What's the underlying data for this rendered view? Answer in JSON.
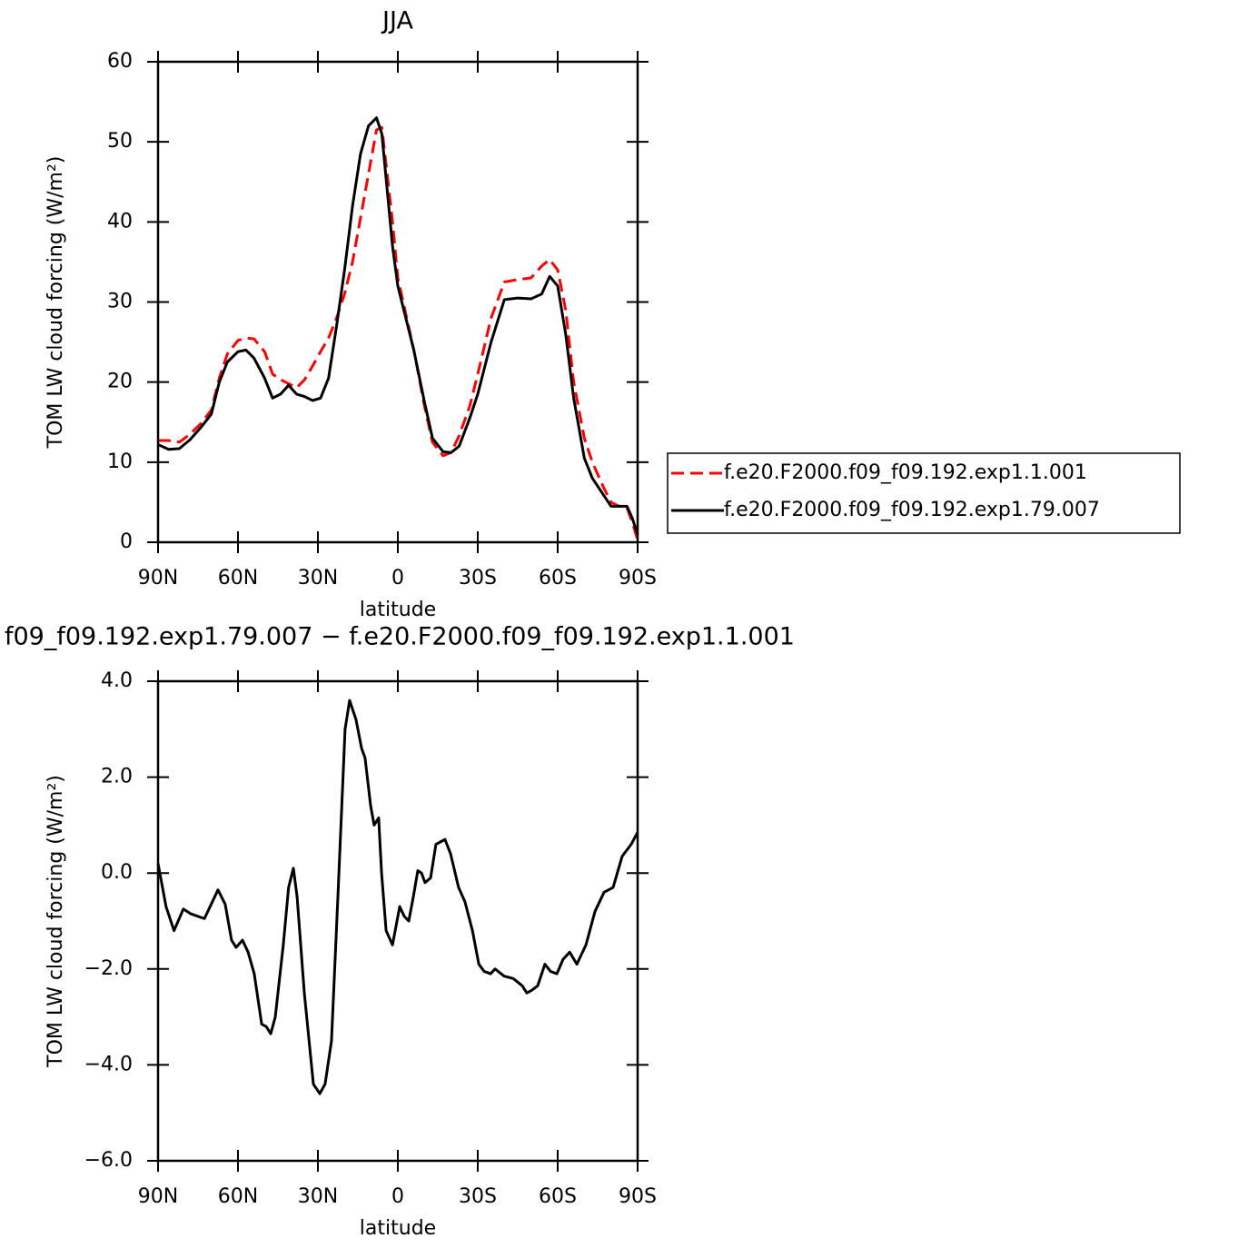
{
  "chart_data": [
    {
      "type": "line",
      "title": "JJA",
      "xlabel": "latitude",
      "ylabel": "TOM LW cloud forcing (W/m²)",
      "x": [
        90,
        86,
        82,
        78,
        74,
        70,
        67,
        64,
        60,
        57,
        54,
        50,
        47,
        44,
        41,
        38,
        35,
        32,
        29,
        26,
        23,
        20,
        17,
        14,
        11,
        8,
        6,
        4,
        2,
        0,
        -3,
        -6,
        -10,
        -13,
        -17,
        -20,
        -23,
        -27,
        -30,
        -35,
        -40,
        -45,
        -50,
        -54,
        -57,
        -60,
        -63,
        -66,
        -70,
        -73,
        -77,
        -80,
        -83,
        -86,
        -88,
        -90
      ],
      "xlim": [
        90,
        -90
      ],
      "xticks": [
        {
          "value": 90,
          "label": "90N"
        },
        {
          "value": 60,
          "label": "60N"
        },
        {
          "value": 30,
          "label": "30N"
        },
        0,
        {
          "value": -30,
          "label": "30S"
        },
        {
          "value": -60,
          "label": "60S"
        },
        {
          "value": -90,
          "label": "90S"
        }
      ],
      "ylim": [
        0,
        60
      ],
      "yticks": [
        0,
        10,
        20,
        30,
        40,
        50,
        60
      ],
      "legend": "right",
      "series": [
        {
          "name": "f.e20.F2000.f09_f09.192.exp1.1.001",
          "color": "#ff0000",
          "dash": "dashed",
          "values": [
            12.7,
            12.7,
            12.5,
            13.5,
            14.8,
            16.5,
            20.5,
            23.5,
            25.2,
            25.5,
            25.4,
            23.8,
            21,
            20.3,
            19.8,
            19.3,
            20.3,
            22,
            23.8,
            25.5,
            28,
            31,
            35,
            40.5,
            46,
            51.5,
            51.8,
            46,
            40,
            33,
            28.5,
            24,
            17,
            12.5,
            10.8,
            11.2,
            13.3,
            17,
            21,
            28,
            32.5,
            32.8,
            33,
            34.5,
            35.3,
            34,
            29,
            20,
            13,
            10,
            7,
            5,
            4.5,
            4.3,
            2.5,
            0.3
          ]
        },
        {
          "name": "f.e20.F2000.f09_f09.192.exp1.79.007",
          "color": "#000000",
          "dash": "solid",
          "values": [
            12.2,
            11.6,
            11.7,
            12.8,
            14.3,
            16,
            20,
            22.5,
            23.8,
            24,
            23,
            20.5,
            18,
            18.5,
            19.6,
            18.5,
            18.2,
            17.7,
            18,
            20.5,
            27,
            34,
            42,
            48.5,
            52,
            53,
            51,
            44,
            37,
            32,
            28,
            24,
            17.5,
            13,
            11.3,
            11.2,
            12,
            15.5,
            18.5,
            25,
            30.3,
            30.5,
            30.4,
            31,
            33.2,
            32,
            26,
            18,
            10.5,
            8,
            6,
            4.5,
            4.5,
            4.5,
            3,
            1
          ]
        }
      ]
    },
    {
      "type": "line",
      "title": "f09_f09.192.exp1.79.007 − f.e20.F2000.f09_f09.192.exp1.1.001",
      "xlabel": "latitude",
      "ylabel": "TOM LW cloud forcing (W/m²)",
      "x": [
        90,
        87,
        84,
        80.5,
        77.7,
        72.6,
        67.5,
        64.8,
        62.4,
        60.7,
        58.3,
        56.2,
        53.9,
        51.1,
        49.4,
        47.7,
        46,
        43,
        41,
        39.2,
        37.8,
        35.1,
        31.7,
        29.3,
        27.3,
        24.9,
        22.5,
        19.8,
        18.1,
        15.7,
        13.6,
        12.3,
        10.2,
        8.9,
        7.2,
        6.1,
        4.4,
        2,
        -0.7,
        -2.4,
        -4.1,
        -5.8,
        -7.5,
        -8.9,
        -10.2,
        -12.3,
        -14.3,
        -16,
        -17.7,
        -19.8,
        -22.8,
        -25.2,
        -28,
        -30.4,
        -32.4,
        -34.8,
        -36.5,
        -39.9,
        -43.3,
        -46.7,
        -48.4,
        -50.1,
        -52.5,
        -55.2,
        -57.3,
        -59.7,
        -62,
        -64.5,
        -67.2,
        -70.6,
        -74,
        -77.4,
        -80.8,
        -84.2,
        -87.6,
        -90
      ],
      "xlim": [
        90,
        -90
      ],
      "xticks": [
        {
          "value": 90,
          "label": "90N"
        },
        {
          "value": 60,
          "label": "60N"
        },
        {
          "value": 30,
          "label": "30N"
        },
        0,
        {
          "value": -30,
          "label": "30S"
        },
        {
          "value": -60,
          "label": "60S"
        },
        {
          "value": -90,
          "label": "90S"
        }
      ],
      "ylim": [
        -6,
        4
      ],
      "yticks": [
        {
          "value": -6,
          "label": "−6.0"
        },
        {
          "value": -4,
          "label": "−4.0"
        },
        {
          "value": -2,
          "label": "−2.0"
        },
        {
          "value": 0,
          "label": "0.0"
        },
        {
          "value": 2,
          "label": "2.0"
        },
        {
          "value": 4,
          "label": "4.0"
        }
      ],
      "color": "#000000",
      "values": [
        0.2,
        -0.7,
        -1.2,
        -0.75,
        -0.85,
        -0.95,
        -0.35,
        -0.65,
        -1.4,
        -1.55,
        -1.4,
        -1.65,
        -2.1,
        -3.15,
        -3.2,
        -3.35,
        -3.0,
        -1.5,
        -0.3,
        0.1,
        -0.5,
        -2.5,
        -4.4,
        -4.6,
        -4.4,
        -3.5,
        -0.5,
        3.0,
        3.6,
        3.2,
        2.6,
        2.4,
        1.4,
        1.0,
        1.15,
        0,
        -1.2,
        -1.5,
        -0.7,
        -0.9,
        -1.0,
        -0.5,
        0.05,
        0,
        -0.2,
        -0.1,
        0.6,
        0.65,
        0.7,
        0.4,
        -0.3,
        -0.6,
        -1.2,
        -1.9,
        -2.05,
        -2.1,
        -2.0,
        -2.15,
        -2.2,
        -2.35,
        -2.5,
        -2.45,
        -2.35,
        -1.9,
        -2.05,
        -2.1,
        -1.8,
        -1.65,
        -1.9,
        -1.5,
        -0.8,
        -0.4,
        -0.3,
        0.35,
        0.6,
        0.85
      ]
    }
  ]
}
